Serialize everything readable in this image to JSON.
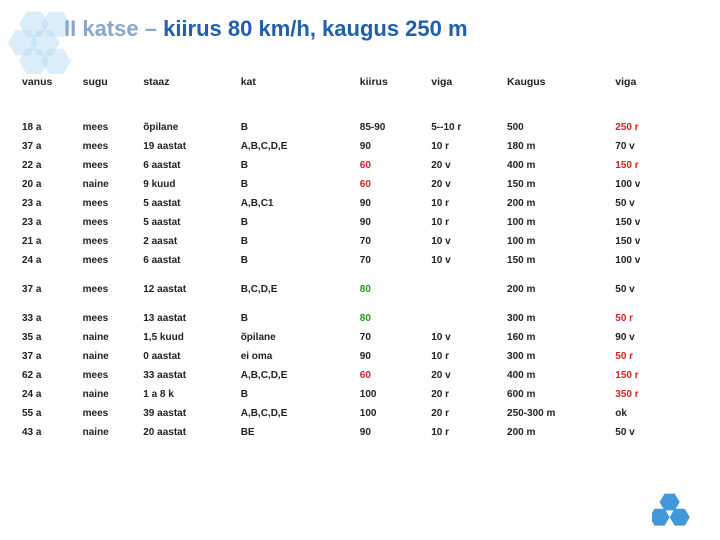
{
  "title": {
    "prefix": "II katse – ",
    "highlight": "kiirus 80 km/h, kaugus 250 m",
    "prefix_color": "#8aa7c9",
    "highlight_color": "#1f5fb0"
  },
  "accent_hex_color": "#36a0e0",
  "table": {
    "columns": [
      "vanus",
      "sugu",
      "staaz",
      "kat",
      "kiirus",
      "viga",
      "Kaugus",
      "viga"
    ],
    "text_color": "#222222",
    "colors": {
      "default": "#222222",
      "red": "#d62222",
      "green": "#1e9e1e"
    },
    "rows": [
      {
        "gap": false,
        "cells": [
          {
            "v": "18 a"
          },
          {
            "v": "mees"
          },
          {
            "v": "õpilane"
          },
          {
            "v": "B"
          },
          {
            "v": "85-90"
          },
          {
            "v": "5--10 r"
          },
          {
            "v": "500"
          },
          {
            "v": "250 r",
            "c": "red"
          }
        ]
      },
      {
        "gap": false,
        "cells": [
          {
            "v": "37 a"
          },
          {
            "v": "mees"
          },
          {
            "v": "19 aastat"
          },
          {
            "v": "A,B,C,D,E"
          },
          {
            "v": "90"
          },
          {
            "v": "10 r"
          },
          {
            "v": "180 m"
          },
          {
            "v": "70 v"
          }
        ]
      },
      {
        "gap": false,
        "cells": [
          {
            "v": "22 a"
          },
          {
            "v": "mees"
          },
          {
            "v": "6 aastat"
          },
          {
            "v": "B"
          },
          {
            "v": "60",
            "c": "red"
          },
          {
            "v": "20 v"
          },
          {
            "v": "400 m"
          },
          {
            "v": "150 r",
            "c": "red"
          }
        ]
      },
      {
        "gap": false,
        "cells": [
          {
            "v": "20 a"
          },
          {
            "v": "naine"
          },
          {
            "v": "9 kuud"
          },
          {
            "v": "B"
          },
          {
            "v": "60",
            "c": "red"
          },
          {
            "v": "20 v"
          },
          {
            "v": "150 m"
          },
          {
            "v": "100 v"
          }
        ]
      },
      {
        "gap": false,
        "cells": [
          {
            "v": "23 a"
          },
          {
            "v": "mees"
          },
          {
            "v": "5 aastat"
          },
          {
            "v": "A,B,C1"
          },
          {
            "v": "90"
          },
          {
            "v": "10 r"
          },
          {
            "v": "200 m"
          },
          {
            "v": "50 v"
          }
        ]
      },
      {
        "gap": false,
        "cells": [
          {
            "v": "23 a"
          },
          {
            "v": "mees"
          },
          {
            "v": "5 aastat"
          },
          {
            "v": "B"
          },
          {
            "v": "90"
          },
          {
            "v": "10 r"
          },
          {
            "v": "100 m"
          },
          {
            "v": "150 v"
          }
        ]
      },
      {
        "gap": false,
        "cells": [
          {
            "v": "21 a"
          },
          {
            "v": "mees"
          },
          {
            "v": "2 aasat"
          },
          {
            "v": "B"
          },
          {
            "v": "70"
          },
          {
            "v": "10 v"
          },
          {
            "v": "100 m"
          },
          {
            "v": "150 v"
          }
        ]
      },
      {
        "gap": false,
        "cells": [
          {
            "v": "24 a"
          },
          {
            "v": "mees"
          },
          {
            "v": "6 aastat"
          },
          {
            "v": "B"
          },
          {
            "v": "70"
          },
          {
            "v": "10 v"
          },
          {
            "v": "150 m"
          },
          {
            "v": "100 v"
          }
        ]
      },
      {
        "gap": true,
        "cells": [
          {
            "v": "37 a"
          },
          {
            "v": "mees"
          },
          {
            "v": "12 aastat"
          },
          {
            "v": "B,C,D,E"
          },
          {
            "v": "80",
            "c": "green"
          },
          {
            "v": ""
          },
          {
            "v": "200 m"
          },
          {
            "v": "50 v"
          }
        ]
      },
      {
        "gap": true,
        "cells": [
          {
            "v": "33 a"
          },
          {
            "v": "mees"
          },
          {
            "v": "13 aastat"
          },
          {
            "v": "B"
          },
          {
            "v": "80",
            "c": "green"
          },
          {
            "v": ""
          },
          {
            "v": "300 m"
          },
          {
            "v": "50 r",
            "c": "red"
          }
        ]
      },
      {
        "gap": false,
        "cells": [
          {
            "v": "35 a"
          },
          {
            "v": "naine"
          },
          {
            "v": "1,5 kuud"
          },
          {
            "v": "õpilane"
          },
          {
            "v": "70"
          },
          {
            "v": "10 v"
          },
          {
            "v": "160 m"
          },
          {
            "v": "90 v"
          }
        ]
      },
      {
        "gap": false,
        "cells": [
          {
            "v": "37 a"
          },
          {
            "v": "naine"
          },
          {
            "v": "0 aastat"
          },
          {
            "v": "ei oma"
          },
          {
            "v": "90"
          },
          {
            "v": "10 r"
          },
          {
            "v": "300 m"
          },
          {
            "v": "50 r",
            "c": "red"
          }
        ]
      },
      {
        "gap": false,
        "cells": [
          {
            "v": "62 a"
          },
          {
            "v": "mees"
          },
          {
            "v": "33 aastat"
          },
          {
            "v": "A,B,C,D,E"
          },
          {
            "v": "60",
            "c": "red"
          },
          {
            "v": "20 v"
          },
          {
            "v": "400 m"
          },
          {
            "v": "150 r",
            "c": "red"
          }
        ]
      },
      {
        "gap": false,
        "cells": [
          {
            "v": "24 a"
          },
          {
            "v": "naine"
          },
          {
            "v": "1 a 8 k"
          },
          {
            "v": "B"
          },
          {
            "v": "100"
          },
          {
            "v": "20 r"
          },
          {
            "v": "600 m"
          },
          {
            "v": "350 r",
            "c": "red"
          }
        ]
      },
      {
        "gap": false,
        "cells": [
          {
            "v": "55 a"
          },
          {
            "v": "mees"
          },
          {
            "v": "39 aastat"
          },
          {
            "v": "A,B,C,D,E"
          },
          {
            "v": "100"
          },
          {
            "v": "20 r"
          },
          {
            "v": "250-300 m"
          },
          {
            "v": "ok"
          }
        ]
      },
      {
        "gap": false,
        "cells": [
          {
            "v": "43 a"
          },
          {
            "v": "naine"
          },
          {
            "v": "20 aastat"
          },
          {
            "v": "BE"
          },
          {
            "v": "90"
          },
          {
            "v": "10 r"
          },
          {
            "v": "200 m"
          },
          {
            "v": "50 v"
          }
        ]
      }
    ]
  }
}
